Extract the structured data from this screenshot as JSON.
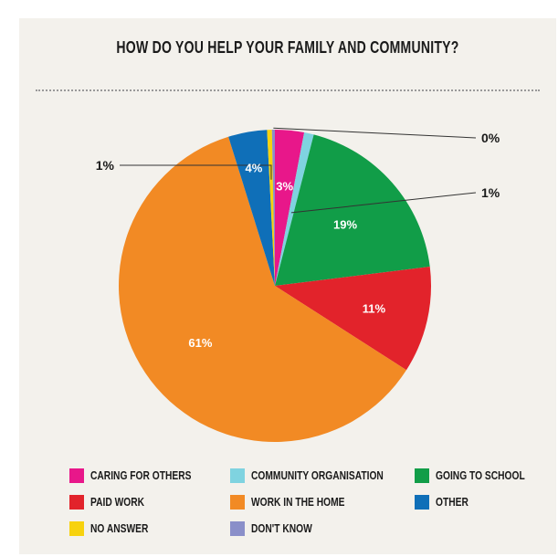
{
  "chart_data": {
    "type": "pie",
    "title": "HOW DO YOU HELP YOUR FAMILY AND COMMUNITY?",
    "slices": [
      {
        "name": "CARING FOR OTHERS",
        "value": 3,
        "label": "3%",
        "color": "#e8178a"
      },
      {
        "name": "COMMUNITY ORGANISATION",
        "value": 1,
        "label": "1%",
        "color": "#7fd3e0"
      },
      {
        "name": "GOING TO SCHOOL",
        "value": 19,
        "label": "19%",
        "color": "#119d48"
      },
      {
        "name": "PAID WORK",
        "value": 11,
        "label": "11%",
        "color": "#e2232b"
      },
      {
        "name": "WORK IN THE HOME",
        "value": 61,
        "label": "61%",
        "color": "#f28a24"
      },
      {
        "name": "OTHER",
        "value": 4,
        "label": "4%",
        "color": "#0f6fb8"
      },
      {
        "name": "NO ANSWER",
        "value": 0.5,
        "label": "1%",
        "color": "#f7d20e"
      },
      {
        "name": "DON'T KNOW",
        "value": 0.3,
        "label": "0%",
        "color": "#8a8fc9"
      }
    ]
  },
  "legend": [
    {
      "label": "CARING FOR OTHERS",
      "color": "#e8178a"
    },
    {
      "label": "COMMUNITY ORGANISATION",
      "color": "#7fd3e0"
    },
    {
      "label": "GOING TO SCHOOL",
      "color": "#119d48"
    },
    {
      "label": "PAID WORK",
      "color": "#e2232b"
    },
    {
      "label": "WORK IN THE HOME",
      "color": "#f28a24"
    },
    {
      "label": "OTHER",
      "color": "#0f6fb8"
    },
    {
      "label": "NO ANSWER",
      "color": "#f7d20e"
    },
    {
      "label": "DON'T KNOW",
      "color": "#8a8fc9"
    }
  ]
}
